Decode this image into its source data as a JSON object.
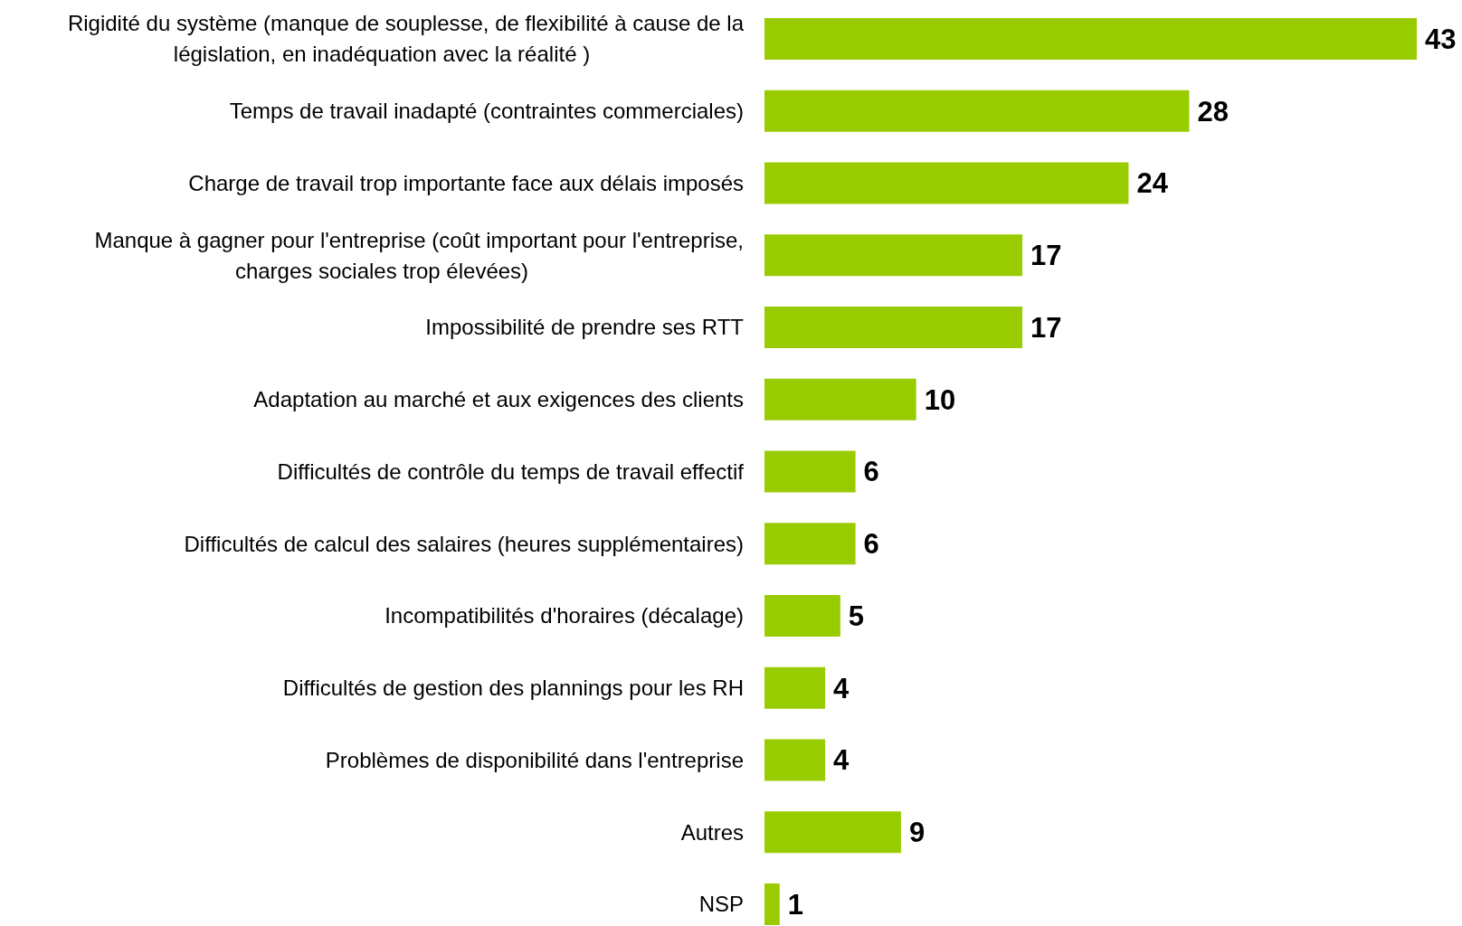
{
  "chart_data": {
    "type": "bar",
    "orientation": "horizontal",
    "color": "#99cc00",
    "data_labels": true,
    "categories": [
      "Rigidité du système (manque de souplesse, de flexibilité à cause de la législation, en inadéquation avec la réalité )",
      "Temps de travail inadapté (contraintes commerciales)",
      "Charge de travail trop importante face aux délais imposés",
      "Manque à gagner pour l'entreprise (coût important pour l'entreprise, charges sociales trop élevées)",
      "Impossibilité de prendre ses RTT",
      "Adaptation au marché et aux exigences des clients",
      "Difficultés de contrôle du temps de travail effectif",
      "Difficultés de calcul des salaires (heures supplémentaires)",
      "Incompatibilités d'horaires (décalage)",
      "Difficultés de gestion des plannings pour les RH",
      "Problèmes de disponibilité dans l'entreprise",
      "Autres",
      "NSP"
    ],
    "values": [
      43,
      28,
      24,
      17,
      17,
      10,
      6,
      6,
      5,
      4,
      4,
      9,
      1
    ]
  }
}
